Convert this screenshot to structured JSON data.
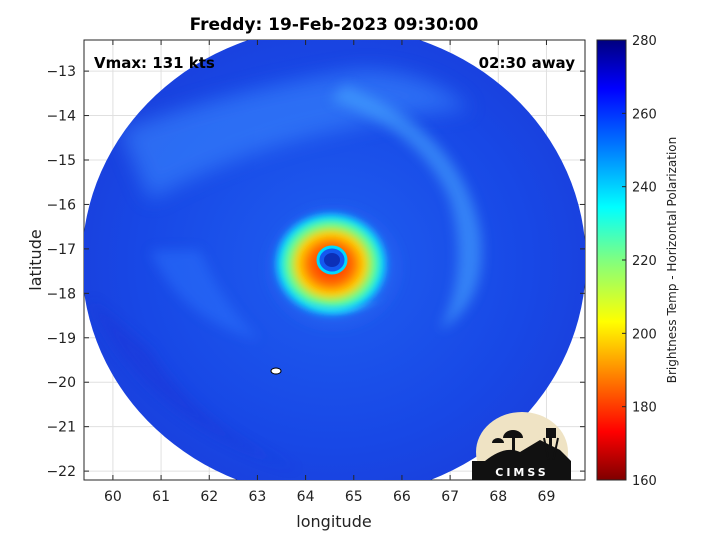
{
  "title": "Freddy: 19-Feb-2023 09:30:00",
  "annotations": {
    "vmax": "Vmax: 131 kts",
    "time_offset": "02:30 away"
  },
  "axes": {
    "xlabel": "longitude",
    "ylabel": "latitude",
    "xlim": [
      59.4,
      69.8
    ],
    "ylim": [
      -22.2,
      -12.3
    ],
    "xticks": [
      60,
      61,
      62,
      63,
      64,
      65,
      66,
      67,
      68,
      69
    ],
    "yticks": [
      -13,
      -14,
      -15,
      -16,
      -17,
      -18,
      -19,
      -20,
      -21,
      -22
    ],
    "grid": true
  },
  "colorbar": {
    "label": "Brightness Temp - Horizontal Polarization",
    "range": [
      160,
      280
    ],
    "ticks": [
      160,
      180,
      200,
      220,
      240,
      260,
      280
    ],
    "colormap": "jet",
    "colors": [
      "#7f0000",
      "#ff0000",
      "#ff8000",
      "#ffff00",
      "#80ff80",
      "#00ffff",
      "#0080ff",
      "#0000ff",
      "#00007f"
    ]
  },
  "storm": {
    "name": "Freddy",
    "eye_center_lon": 64.55,
    "eye_center_lat": -17.25,
    "swath_center_lon": 64.6,
    "swath_center_lat": -17.3
  },
  "logo": {
    "text": "CIMSS"
  }
}
